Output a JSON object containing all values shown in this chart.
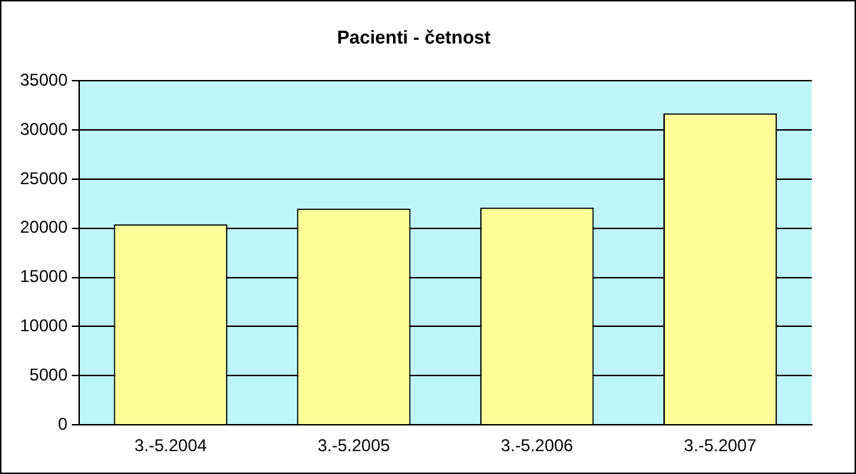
{
  "chart_data": {
    "type": "bar",
    "title": "Pacienti - četnost",
    "categories": [
      "3.-5.2004",
      "3.-5.2005",
      "3.-5.2006",
      "3.-5.2007"
    ],
    "values": [
      20400,
      22000,
      22100,
      31700
    ],
    "color": "#ffff99",
    "ylim": [
      0,
      35000
    ],
    "yticks": [
      0,
      5000,
      10000,
      15000,
      20000,
      25000,
      30000,
      35000
    ],
    "grid": "y"
  }
}
